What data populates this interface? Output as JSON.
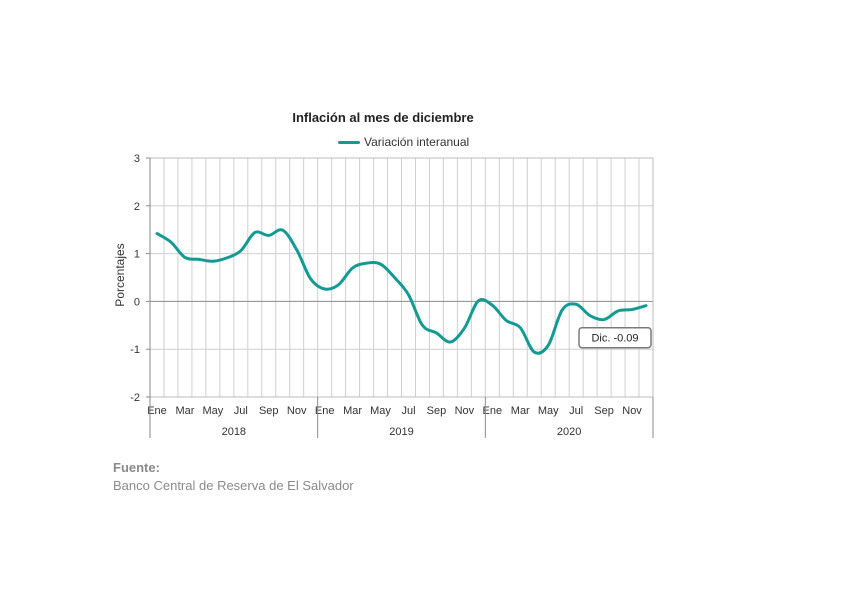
{
  "chart_data": {
    "type": "line",
    "title": "Inflación al mes de diciembre",
    "ylabel": "Porcentajes",
    "ylim": [
      -2,
      3
    ],
    "yticks": [
      -2,
      -1,
      0,
      1,
      2,
      3
    ],
    "grid": true,
    "legend_position": "top",
    "series": [
      {
        "name": "Variación interanual",
        "color": "#139a93",
        "values": [
          1.42,
          1.24,
          0.92,
          0.88,
          0.84,
          0.91,
          1.06,
          1.44,
          1.38,
          1.49,
          1.08,
          0.47,
          0.26,
          0.35,
          0.7,
          0.8,
          0.78,
          0.5,
          0.14,
          -0.5,
          -0.66,
          -0.85,
          -0.56,
          0.01,
          -0.08,
          -0.4,
          -0.55,
          -1.06,
          -0.92,
          -0.18,
          -0.06,
          -0.3,
          -0.38,
          -0.2,
          -0.17,
          -0.09
        ]
      }
    ],
    "month_labels": [
      "Ene",
      "Mar",
      "May",
      "Jul",
      "Sep",
      "Nov"
    ],
    "years": [
      "2018",
      "2019",
      "2020"
    ],
    "annotation": "Dic. -0.09"
  },
  "source": {
    "title": "Fuente:",
    "text": "Banco Central de Reserva de El Salvador"
  }
}
